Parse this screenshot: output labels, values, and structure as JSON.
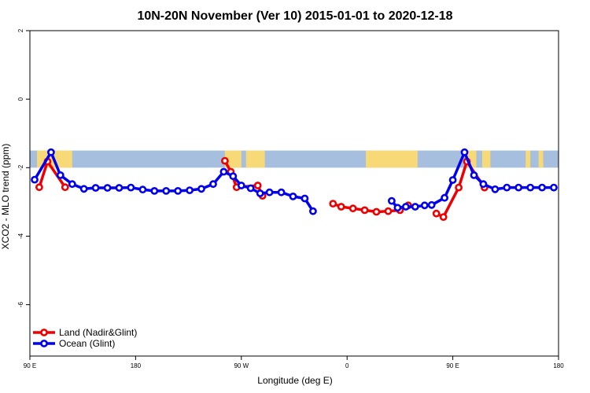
{
  "chart_data": {
    "type": "line",
    "title": "10N-20N November (Ver 10)   2015-01-01 to 2020-12-18",
    "xlabel": "Longitude (deg E)",
    "ylabel": "XCO2 - MLO trend (ppm)",
    "xlim": [
      90,
      540
    ],
    "ylim": [
      -7.5,
      2.0
    ],
    "x_ticks": [
      {
        "value": 90,
        "label": "90 E"
      },
      {
        "value": 180,
        "label": "180"
      },
      {
        "value": 270,
        "label": "90 W"
      },
      {
        "value": 360,
        "label": "0"
      },
      {
        "value": 450,
        "label": "90 E"
      },
      {
        "value": 540,
        "label": "180"
      }
    ],
    "y_ticks": [
      {
        "value": 2,
        "label": "2"
      },
      {
        "value": 0,
        "label": "0"
      },
      {
        "value": -2,
        "label": "-2"
      },
      {
        "value": -4,
        "label": "-4"
      },
      {
        "value": -6,
        "label": "-6"
      }
    ],
    "land_band": {
      "y_from": -2.0,
      "y_to": -1.5,
      "ocean_color": "#a7bfdf",
      "land_color": "#f8d977",
      "land_segments": [
        [
          96,
          114
        ],
        [
          114,
          126
        ],
        [
          256,
          270
        ],
        [
          274,
          290
        ],
        [
          376,
          420
        ],
        [
          462,
          470
        ],
        [
          475,
          482
        ],
        [
          512,
          516
        ],
        [
          523,
          527
        ]
      ]
    },
    "series": [
      {
        "name": "Land (Nadir&Glint)",
        "color": "#ee0000",
        "points": [
          [
            98,
            -2.57
          ],
          [
            105,
            -1.82
          ],
          [
            120,
            -2.57
          ],
          [
            256,
            -1.8
          ],
          [
            261,
            -2.12
          ],
          [
            266,
            -2.57
          ],
          [
            284,
            -2.52
          ],
          [
            288,
            -2.82
          ],
          [
            348,
            -3.05
          ],
          [
            355,
            -3.14
          ],
          [
            365,
            -3.19
          ],
          [
            375,
            -3.24
          ],
          [
            385,
            -3.29
          ],
          [
            395,
            -3.27
          ],
          [
            405,
            -3.24
          ],
          [
            412,
            -3.1
          ],
          [
            436,
            -3.34
          ],
          [
            442,
            -3.44
          ],
          [
            455,
            -2.58
          ],
          [
            462,
            -1.82
          ],
          [
            477,
            -2.58
          ]
        ]
      },
      {
        "name": "Ocean (Glint)",
        "color": "#0000ee",
        "points": [
          [
            94,
            -2.35
          ],
          [
            108,
            -1.55
          ],
          [
            116,
            -2.22
          ],
          [
            126,
            -2.48
          ],
          [
            136,
            -2.62
          ],
          [
            146,
            -2.59
          ],
          [
            156,
            -2.59
          ],
          [
            166,
            -2.59
          ],
          [
            176,
            -2.58
          ],
          [
            186,
            -2.64
          ],
          [
            196,
            -2.68
          ],
          [
            206,
            -2.68
          ],
          [
            216,
            -2.68
          ],
          [
            226,
            -2.66
          ],
          [
            236,
            -2.62
          ],
          [
            246,
            -2.48
          ],
          [
            255,
            -2.12
          ],
          [
            263,
            -2.25
          ],
          [
            270,
            -2.52
          ],
          [
            278,
            -2.6
          ],
          [
            286,
            -2.75
          ],
          [
            294,
            -2.72
          ],
          [
            304,
            -2.72
          ],
          [
            314,
            -2.84
          ],
          [
            324,
            -2.9
          ],
          [
            331,
            -3.27
          ],
          [
            398,
            -2.97
          ],
          [
            403,
            -3.17
          ],
          [
            410,
            -3.14
          ],
          [
            418,
            -3.14
          ],
          [
            426,
            -3.1
          ],
          [
            432,
            -3.09
          ],
          [
            443,
            -2.88
          ],
          [
            450,
            -2.36
          ],
          [
            460,
            -1.55
          ],
          [
            468,
            -2.22
          ],
          [
            476,
            -2.48
          ],
          [
            486,
            -2.63
          ],
          [
            496,
            -2.58
          ],
          [
            506,
            -2.58
          ],
          [
            516,
            -2.58
          ],
          [
            526,
            -2.58
          ],
          [
            536,
            -2.58
          ]
        ]
      }
    ],
    "legend_position": "bottom-left",
    "grid": false
  }
}
